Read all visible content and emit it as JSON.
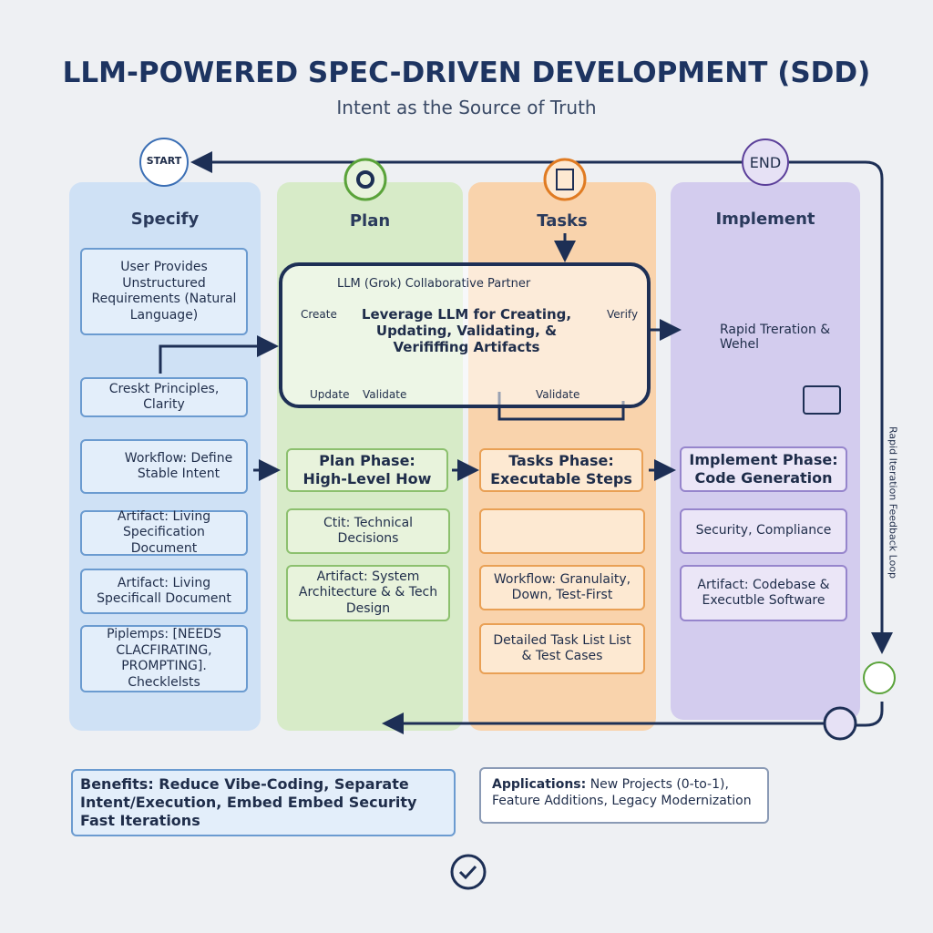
{
  "header": {
    "title": "LLM-POWERED SPEC-DRIVEN DEVELOPMENT (SDD)",
    "subtitle": "Intent as the Source of Truth"
  },
  "flow": {
    "start": "START",
    "end": "END",
    "loop_label": "Rapid Iteration Feedback Loop"
  },
  "columns": [
    {
      "title": "Specify",
      "cards": [
        "User Provides Unstructured Requirements (Natural Language)",
        "Creskt Principles, Clarity",
        "Workflow: Define Stable Intent",
        "Artifact: Living Specification Document",
        "Artifact: Living Specificall Document",
        "Piplemps: [NEEDS CLACFIRATING, PROMPTING]. Checklelsts"
      ]
    },
    {
      "title": "Plan",
      "phase": "Plan Phase: High-Level How",
      "cards": [
        "Ctit: Technical Decisions",
        "Artifact: System Architecture & & Tech Design"
      ]
    },
    {
      "title": "Tasks",
      "phase": "Tasks Phase: Executable Steps",
      "cards": [
        "Workflow: Granulaity, Down, Test-First",
        "Detailed Task List List & Test Cases"
      ]
    },
    {
      "title": "Implement",
      "note": "Rapid Treration & Wehel",
      "phase": "Implement Phase: Code Generation",
      "cards": [
        "Security, Compliance",
        "Artifact: Codebase & Executble Software"
      ]
    }
  ],
  "llm_box": {
    "title": "LLM (Grok) Collaborative Partner",
    "body": "Leverage LLM for Creating, Updating, Validating, & Verififfing Artifacts",
    "actions": [
      "Create",
      "Update",
      "Validate",
      "Verify",
      "Validate"
    ]
  },
  "footer": {
    "benefits": "Benefits: Reduce Vibe-Coding, Separate Intent/Execution, Embed Embed Security Fast Iterations",
    "applications_label": "Applications:",
    "applications": "New Projects (0-to-1), Feature Additions, Legacy Modernization"
  }
}
